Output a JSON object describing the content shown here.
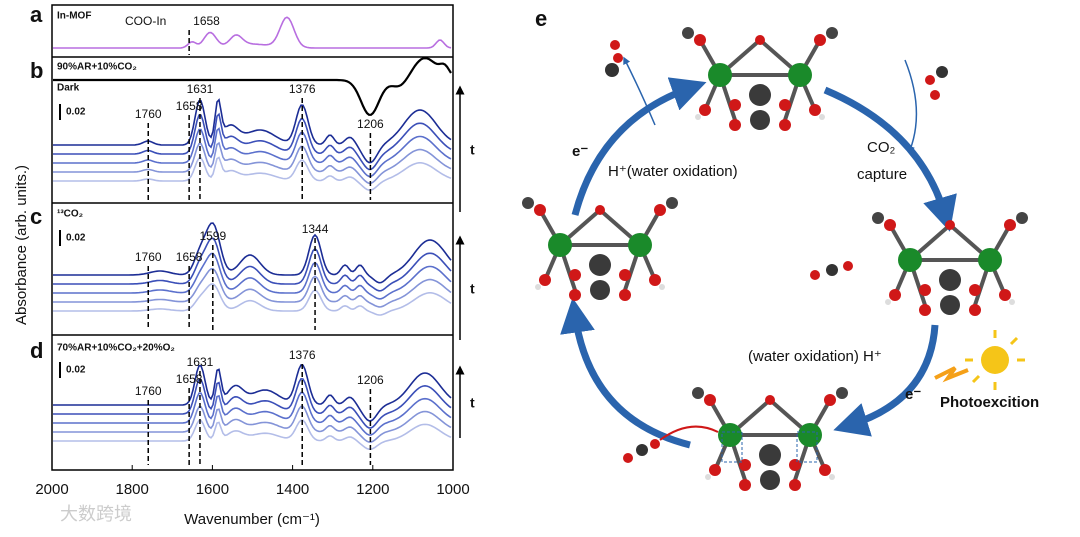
{
  "panels": [
    {
      "label": "a",
      "title": "In-MOF",
      "note": "COO-In",
      "peaks": [
        1658
      ]
    },
    {
      "label": "b",
      "title": "90%AR+10%CO₂",
      "sub": "Dark",
      "scale": "0.02",
      "peaks": [
        1760,
        1658,
        1631,
        1376,
        1206
      ],
      "arrow": "t"
    },
    {
      "label": "c",
      "title": "¹³CO₂",
      "scale": "0.02",
      "peaks": [
        1760,
        1658,
        1599,
        1344
      ],
      "arrow": "t"
    },
    {
      "label": "d",
      "title": "70%AR+10%CO₂+20%O₂",
      "scale": "0.02",
      "peaks": [
        1760,
        1658,
        1631,
        1376,
        1206
      ],
      "arrow": "t"
    }
  ],
  "x_axis": {
    "label": "Wavenumber (cm⁻¹)",
    "ticks": [
      2000,
      1800,
      1600,
      1400,
      1200,
      1000
    ]
  },
  "y_axis_label": "Absorbance (arb. units.)",
  "scheme": {
    "label": "e",
    "co2": "CO₂",
    "capture": "capture",
    "h_left": "H⁺(water oxidation)",
    "e_left": "e⁻",
    "h_right": "(water oxidation) H⁺",
    "e_right": "e⁻",
    "photo": "Photoexcition"
  },
  "watermark": "大数跨境"
}
